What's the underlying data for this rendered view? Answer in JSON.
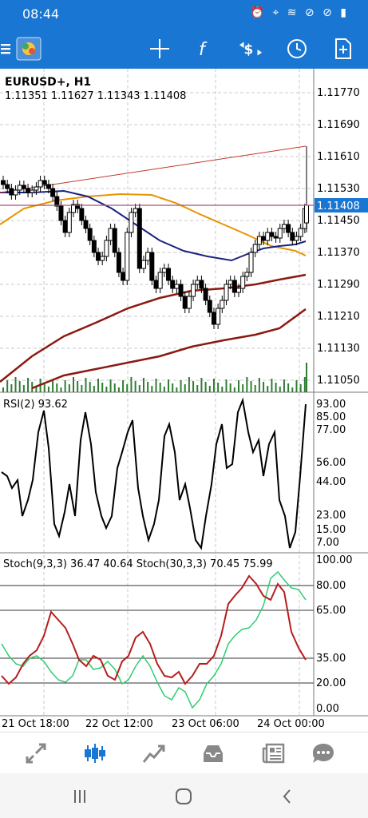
{
  "status": {
    "time": "08:44"
  },
  "chart": {
    "symbol": "EURUSD+, H1",
    "ohlc": "1.11351 1.11627 1.11343 1.11408",
    "price_labels": [
      "1.11770",
      "1.11690",
      "1.11610",
      "1.11530",
      "1.11450",
      "1.11370",
      "1.11290",
      "1.11210",
      "1.11130",
      "1.11050"
    ],
    "current_price": "1.11408",
    "rsi_label": "RSI(2) 93.62",
    "rsi_levels": [
      "93.00",
      "85.00",
      "77.00",
      "56.00",
      "44.00",
      "23.00",
      "15.00",
      "7.00"
    ],
    "stoch_label": "Stoch(9,3,3) 36.47 40.64 Stoch(30,3,3) 70.45 75.99",
    "stoch_levels": [
      "100.00",
      "80.00",
      "65.00",
      "35.00",
      "20.00",
      "0.00"
    ],
    "time_labels": [
      "21 Oct 18:00",
      "22 Oct 12:00",
      "23 Oct 06:00",
      "24 Oct 00:00"
    ]
  },
  "colors": {
    "accent": "#1976d2",
    "ma_fast": "#1a237e",
    "ma_mid": "#e69500",
    "ma_slow": "#8b1a10",
    "rsi": "#000000",
    "stoch_main": "#b71c1c",
    "stoch_signal": "#2ecc71",
    "volume": "#2e7d32",
    "price_line": "#b04a7a"
  }
}
